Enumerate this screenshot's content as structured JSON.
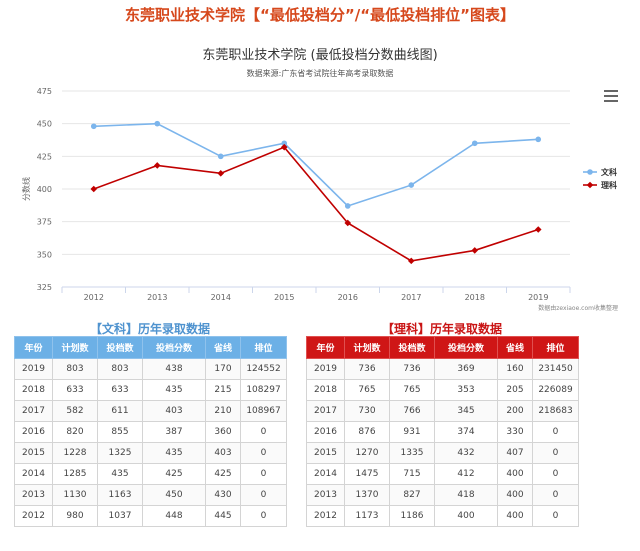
{
  "page_title": "东莞职业技术学院【“最低投档分”/“最低投档排位”图表】",
  "chart_data": {
    "type": "line",
    "title": "东莞职业技术学院  (最低投档分数曲线图)",
    "subtitle": "数据来源:广东省考试院往年高考录取数据",
    "ylabel": "分数线",
    "credit": "数据由zexiaoe.com收集整理",
    "categories": [
      "2012",
      "2013",
      "2014",
      "2015",
      "2016",
      "2017",
      "2018",
      "2019"
    ],
    "yticks": [
      "475",
      "450",
      "425",
      "400",
      "375",
      "350",
      "325"
    ],
    "ylim": [
      325,
      475
    ],
    "grid": true,
    "legend": "right",
    "series": [
      {
        "name": "文科",
        "color": "#7cb5ec",
        "values": [
          448,
          450,
          425,
          435,
          387,
          403,
          435,
          438
        ]
      },
      {
        "name": "理科",
        "color": "#c00000",
        "values": [
          400,
          418,
          412,
          432,
          374,
          345,
          353,
          369
        ]
      }
    ]
  },
  "tables": {
    "columns": [
      "年份",
      "计划数",
      "投档数",
      "投档分数",
      "省线",
      "排位"
    ],
    "wen": {
      "title": "【文科】历年录取数据",
      "rows": [
        [
          "2019",
          "803",
          "803",
          "438",
          "170",
          "124552"
        ],
        [
          "2018",
          "633",
          "633",
          "435",
          "215",
          "108297"
        ],
        [
          "2017",
          "582",
          "611",
          "403",
          "210",
          "108967"
        ],
        [
          "2016",
          "820",
          "855",
          "387",
          "360",
          "0"
        ],
        [
          "2015",
          "1228",
          "1325",
          "435",
          "403",
          "0"
        ],
        [
          "2014",
          "1285",
          "435",
          "425",
          "425",
          "0"
        ],
        [
          "2013",
          "1130",
          "1163",
          "450",
          "430",
          "0"
        ],
        [
          "2012",
          "980",
          "1037",
          "448",
          "445",
          "0"
        ]
      ]
    },
    "li": {
      "title": "【理科】历年录取数据",
      "rows": [
        [
          "2019",
          "736",
          "736",
          "369",
          "160",
          "231450"
        ],
        [
          "2018",
          "765",
          "765",
          "353",
          "205",
          "226089"
        ],
        [
          "2017",
          "730",
          "766",
          "345",
          "200",
          "218683"
        ],
        [
          "2016",
          "876",
          "931",
          "374",
          "330",
          "0"
        ],
        [
          "2015",
          "1270",
          "1335",
          "432",
          "407",
          "0"
        ],
        [
          "2014",
          "1475",
          "715",
          "412",
          "400",
          "0"
        ],
        [
          "2013",
          "1370",
          "827",
          "418",
          "400",
          "0"
        ],
        [
          "2012",
          "1173",
          "1186",
          "400",
          "400",
          "0"
        ]
      ]
    }
  }
}
